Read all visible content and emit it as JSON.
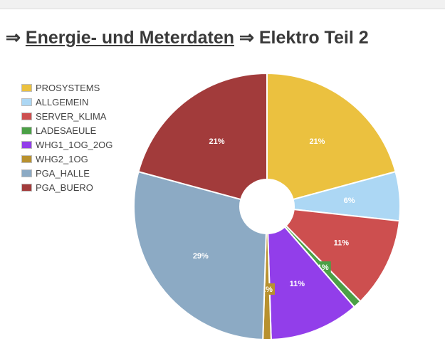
{
  "header": {
    "arrow1": "⇒",
    "link_text": "Energie- und Meterdaten",
    "arrow2": "⇒",
    "section_title": "Elektro Teil 2"
  },
  "chart_data": {
    "type": "pie",
    "title": "",
    "donut": true,
    "legend_position": "left",
    "slices": [
      {
        "name": "PROSYSTEMS",
        "value": 21,
        "label": "21%",
        "color": "#ebc13f"
      },
      {
        "name": "ALLGEMEIN",
        "value": 6,
        "label": "6%",
        "color": "#acd7f4"
      },
      {
        "name": "SERVER_KLIMA",
        "value": 11,
        "label": "11%",
        "color": "#cd4f4f"
      },
      {
        "name": "LADESAEULE",
        "value": 1,
        "label": "1%",
        "color": "#4ba046"
      },
      {
        "name": "WHG1_1OG_2OG",
        "value": 11,
        "label": "11%",
        "color": "#923eea"
      },
      {
        "name": "WHG2_1OG",
        "value": 1,
        "label": "1%",
        "color": "#b8912f"
      },
      {
        "name": "PGA_HALLE",
        "value": 29,
        "label": "29%",
        "color": "#8caac4"
      },
      {
        "name": "PGA_BUERO",
        "value": 21,
        "label": "21%",
        "color": "#a23b3b"
      }
    ]
  }
}
